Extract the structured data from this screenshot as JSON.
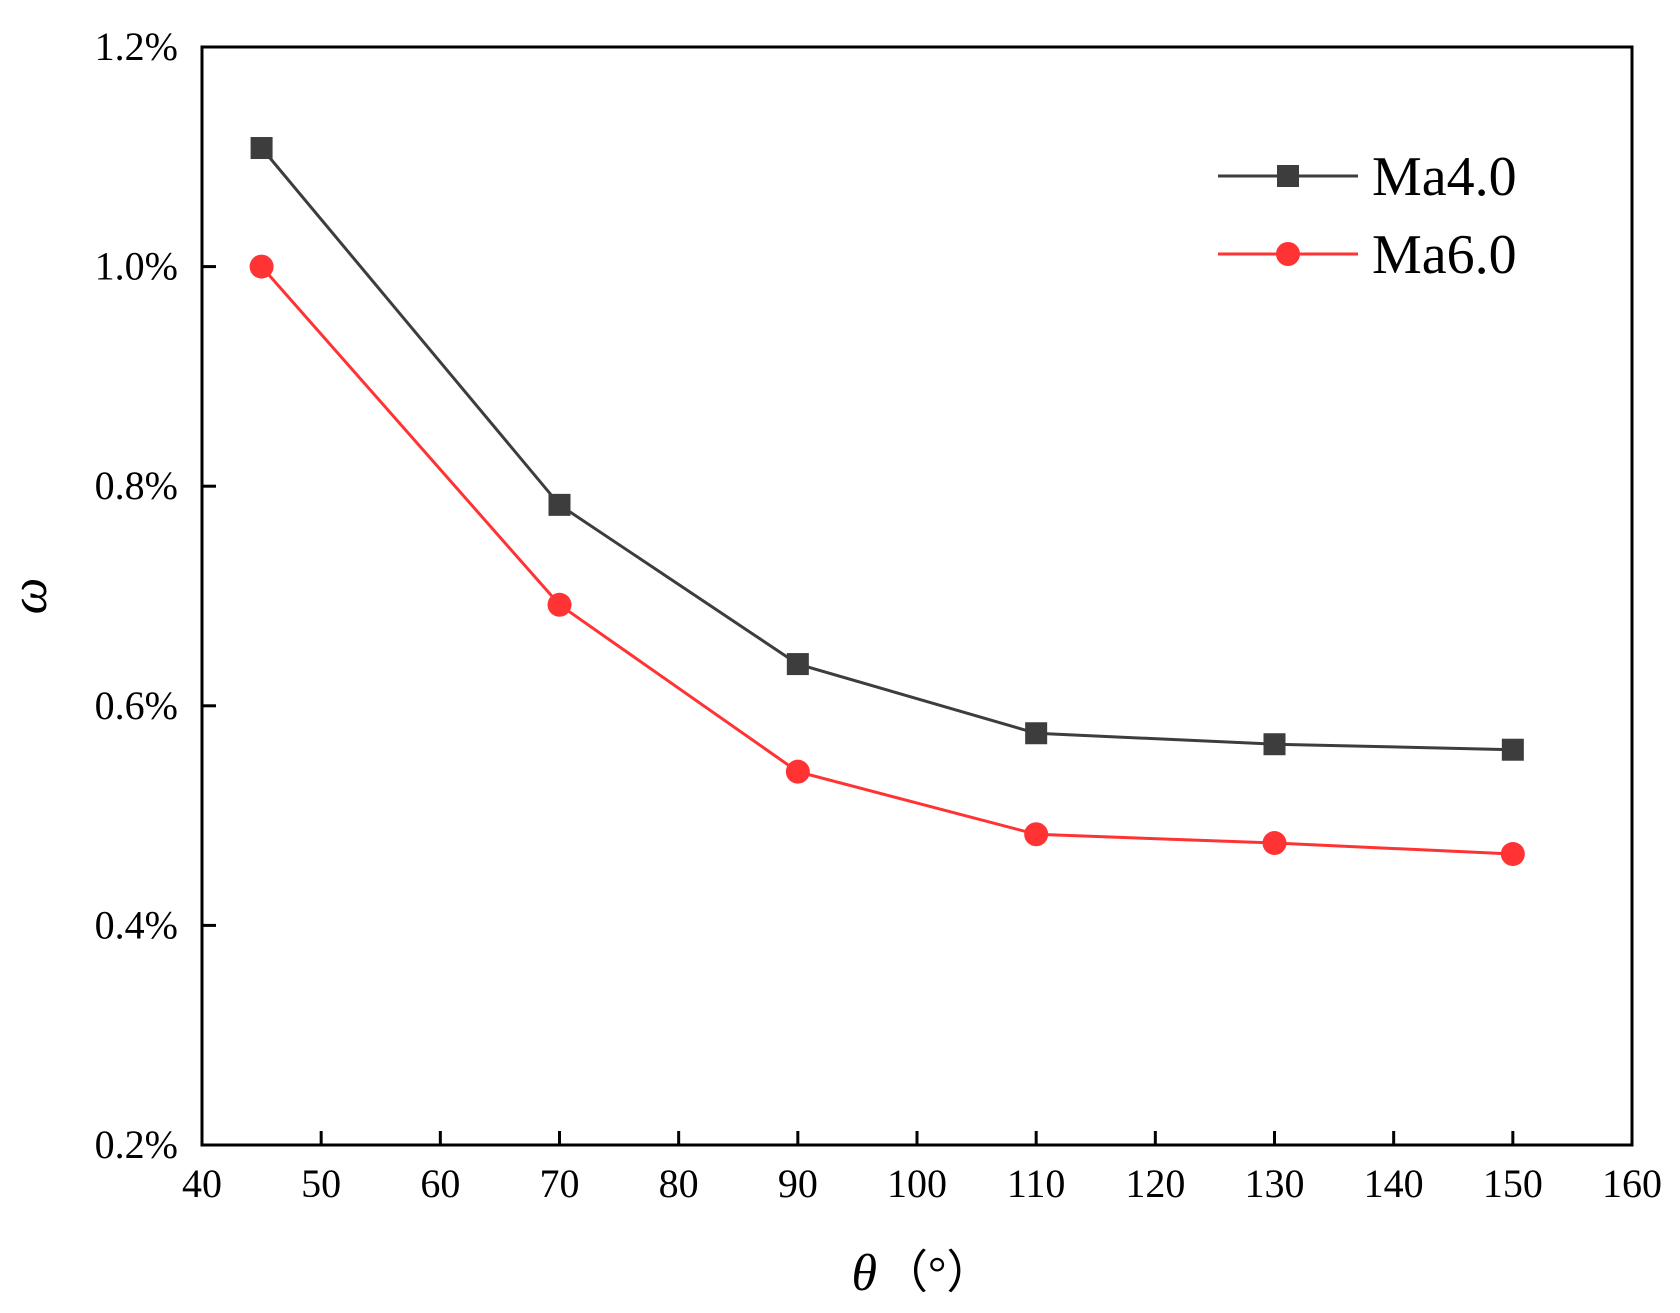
{
  "chart_data": {
    "type": "line",
    "title": "",
    "xlabel": "θ",
    "xunit": "（°）",
    "ylabel": "ω",
    "xlim": [
      40,
      160
    ],
    "ylim": [
      0.2,
      1.2
    ],
    "xticks": [
      40,
      50,
      60,
      70,
      80,
      90,
      100,
      110,
      120,
      130,
      140,
      150,
      160
    ],
    "yticks": [
      0.2,
      0.4,
      0.6,
      0.8,
      1.0,
      1.2
    ],
    "xtick_labels": [
      "40",
      "50",
      "60",
      "70",
      "80",
      "90",
      "100",
      "110",
      "120",
      "130",
      "140",
      "150",
      "160"
    ],
    "ytick_labels": [
      "0.2%",
      "0.4%",
      "0.6%",
      "0.8%",
      "1.0%",
      "1.2%"
    ],
    "x": [
      45,
      70,
      90,
      110,
      130,
      150
    ],
    "series": [
      {
        "name": "Ma4.0",
        "values": [
          1.108,
          0.783,
          0.638,
          0.575,
          0.565,
          0.56
        ],
        "color": "#3d3d3d",
        "marker": "square"
      },
      {
        "name": "Ma6.0",
        "values": [
          1.0,
          0.692,
          0.54,
          0.483,
          0.475,
          0.465
        ],
        "color": "#ff3333",
        "marker": "circle"
      }
    ],
    "grid": false,
    "legend_position": "top-right"
  }
}
